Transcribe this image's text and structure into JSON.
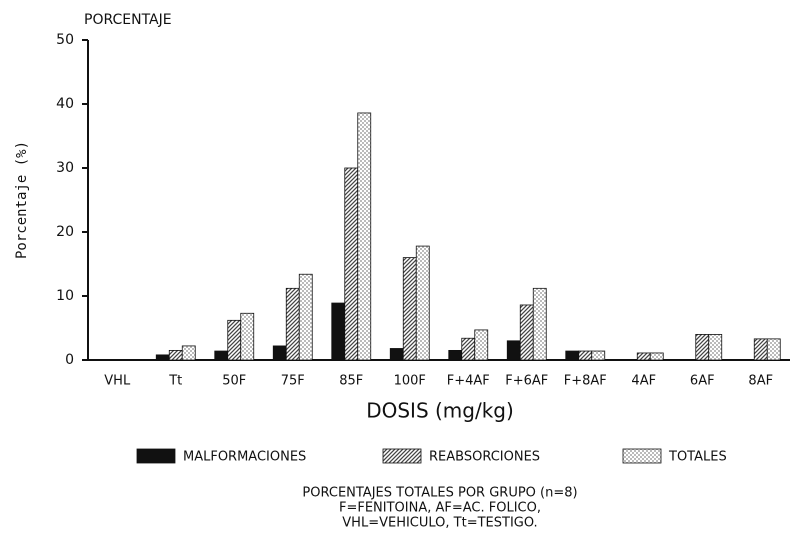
{
  "chart_data": {
    "type": "bar",
    "title": "PORCENTAJE",
    "ylabel": "Porcentaje (%)",
    "xlabel": "DOSIS (mg/kg)",
    "categories": [
      "VHL",
      "Tt",
      "50F",
      "75F",
      "85F",
      "100F",
      "F+4AF",
      "F+6AF",
      "F+8AF",
      "4AF",
      "6AF",
      "8AF"
    ],
    "series": [
      {
        "name": "MALFORMACIONES",
        "color": "#111111",
        "values": [
          0,
          0.8,
          1.4,
          2.2,
          8.9,
          1.8,
          1.5,
          3.0,
          1.4,
          0,
          0,
          0
        ]
      },
      {
        "name": "REABSORCIONES",
        "color": "#444444",
        "values": [
          0,
          1.5,
          6.2,
          11.2,
          30,
          16,
          3.4,
          8.6,
          1.4,
          1.1,
          4.0,
          3.3
        ]
      },
      {
        "name": "TOTALES",
        "color": "#bbbbbb",
        "values": [
          0,
          2.2,
          7.3,
          13.4,
          38.6,
          17.8,
          4.7,
          11.2,
          1.4,
          1.1,
          4.0,
          3.3
        ]
      }
    ],
    "ylim": [
      0,
      50
    ],
    "yticks": [
      0,
      10,
      20,
      30,
      40,
      50
    ],
    "caption": [
      "PORCENTAJES TOTALES POR GRUPO (n=8)",
      "F=FENITOINA, AF=AC. FOLICO,",
      "VHL=VEHICULO, Tt=TESTIGO."
    ]
  }
}
